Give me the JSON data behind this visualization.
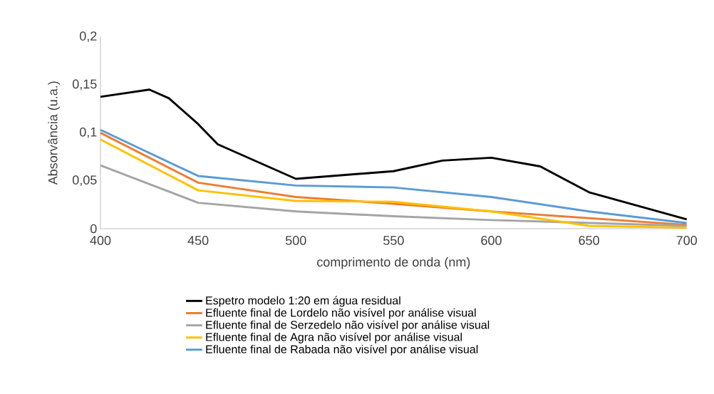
{
  "chart_data": {
    "type": "line",
    "xlabel": "comprimento de onda (nm)",
    "ylabel": "Absorvância (u.a.)",
    "xlim": [
      400,
      700
    ],
    "xticks": [
      400,
      450,
      500,
      550,
      600,
      650,
      700
    ],
    "ylim": [
      0,
      0.2
    ],
    "yticks": [
      {
        "value": 0,
        "label": "0"
      },
      {
        "value": 0.05,
        "label": "0,05"
      },
      {
        "value": 0.1,
        "label": "0,1"
      },
      {
        "value": 0.15,
        "label": "0,15"
      },
      {
        "value": 0.2,
        "label": "0,2"
      }
    ],
    "grid": false,
    "legend": "bottom",
    "marker": "none",
    "line_style": "solid",
    "series": [
      {
        "name": "Espetro modelo 1:20 em água residual",
        "color": "#000000",
        "x": [
          400,
          425,
          435,
          450,
          460,
          500,
          550,
          575,
          600,
          625,
          650,
          700
        ],
        "values": [
          0.1375,
          0.145,
          0.136,
          0.109,
          0.088,
          0.052,
          0.06,
          0.071,
          0.074,
          0.065,
          0.038,
          0.0097
        ]
      },
      {
        "name": "Efluente final de Lordelo não visível por análise visual",
        "color": "#ed7d31",
        "x": [
          400,
          450,
          500,
          550,
          600,
          650,
          700
        ],
        "values": [
          0.1,
          0.048,
          0.033,
          0.026,
          0.018,
          0.011,
          0.004
        ]
      },
      {
        "name": "Efluente final de Serzedelo não visível por análise visual",
        "color": "#a5a5a5",
        "x": [
          400,
          450,
          500,
          550,
          600,
          650,
          700
        ],
        "values": [
          0.066,
          0.027,
          0.018,
          0.013,
          0.009,
          0.006,
          0.003
        ]
      },
      {
        "name": "Efluente final de Agra não visível por análise visual",
        "color": "#ffc000",
        "x": [
          400,
          450,
          500,
          550,
          600,
          650,
          700
        ],
        "values": [
          0.093,
          0.04,
          0.029,
          0.028,
          0.018,
          0.003,
          0.001
        ]
      },
      {
        "name": "Efluente final de Rabada não visível por análise visual",
        "color": "#5b9bd5",
        "x": [
          400,
          450,
          500,
          550,
          600,
          650,
          700
        ],
        "values": [
          0.103,
          0.055,
          0.045,
          0.043,
          0.033,
          0.018,
          0.006
        ]
      }
    ]
  }
}
